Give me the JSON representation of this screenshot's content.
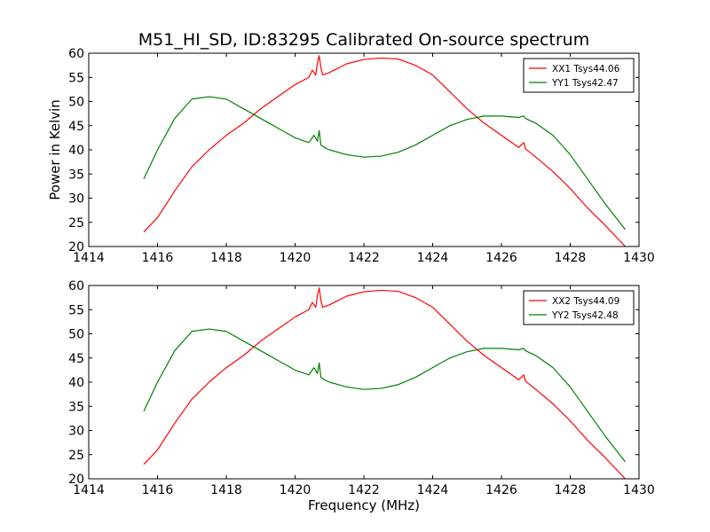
{
  "figure": {
    "title": "M51_HI_SD, ID:83295 Calibrated On-source spectrum",
    "ylabel": "Power in Kelvin",
    "xlabel": "Frequency (MHz)"
  },
  "chart_data": [
    {
      "type": "line",
      "xlim": [
        1414,
        1430
      ],
      "ylim": [
        20,
        60
      ],
      "xticks": [
        1414,
        1416,
        1418,
        1420,
        1422,
        1424,
        1426,
        1428,
        1430
      ],
      "yticks": [
        20,
        25,
        30,
        35,
        40,
        45,
        50,
        55,
        60
      ],
      "legend": "top-right",
      "grid": false,
      "series": [
        {
          "name": "XX1 Tsys44.06",
          "color": "#ff0000",
          "x": [
            1415.6,
            1416.0,
            1416.5,
            1417.0,
            1417.5,
            1418.0,
            1418.5,
            1419.0,
            1419.5,
            1420.0,
            1420.4,
            1420.5,
            1420.6,
            1420.65,
            1420.7,
            1420.75,
            1420.8,
            1421.0,
            1421.5,
            1422.0,
            1422.5,
            1423.0,
            1423.5,
            1424.0,
            1424.5,
            1425.0,
            1425.5,
            1426.0,
            1426.5,
            1426.65,
            1426.7,
            1427.0,
            1427.5,
            1428.0,
            1428.5,
            1429.0,
            1429.6
          ],
          "y": [
            23.0,
            26.0,
            31.5,
            36.5,
            40.0,
            43.0,
            45.5,
            48.5,
            51.0,
            53.5,
            55.0,
            56.5,
            55.5,
            58.0,
            59.5,
            57.0,
            55.5,
            56.0,
            57.8,
            58.7,
            59.0,
            58.8,
            57.5,
            55.5,
            52.0,
            48.5,
            45.5,
            43.0,
            40.5,
            41.5,
            40.2,
            38.5,
            35.5,
            32.0,
            28.0,
            24.5,
            20.0
          ]
        },
        {
          "name": "YY1 Tsys42.47",
          "color": "#008000",
          "x": [
            1415.6,
            1416.0,
            1416.5,
            1417.0,
            1417.5,
            1418.0,
            1418.5,
            1419.0,
            1419.5,
            1420.0,
            1420.4,
            1420.55,
            1420.65,
            1420.7,
            1420.75,
            1420.85,
            1421.0,
            1421.5,
            1422.0,
            1422.5,
            1423.0,
            1423.5,
            1424.0,
            1424.5,
            1425.0,
            1425.5,
            1426.0,
            1426.5,
            1426.65,
            1426.7,
            1427.0,
            1427.5,
            1428.0,
            1428.5,
            1429.0,
            1429.6
          ],
          "y": [
            34.0,
            40.0,
            46.5,
            50.5,
            51.0,
            50.5,
            48.5,
            46.5,
            44.5,
            42.5,
            41.5,
            43.0,
            41.8,
            44.0,
            41.0,
            40.5,
            40.0,
            39.0,
            38.5,
            38.7,
            39.5,
            41.0,
            43.0,
            45.0,
            46.3,
            47.0,
            47.0,
            46.7,
            47.0,
            46.5,
            45.5,
            43.0,
            39.0,
            34.0,
            29.0,
            23.5
          ]
        }
      ]
    },
    {
      "type": "line",
      "xlim": [
        1414,
        1430
      ],
      "ylim": [
        20,
        60
      ],
      "xticks": [
        1414,
        1416,
        1418,
        1420,
        1422,
        1424,
        1426,
        1428,
        1430
      ],
      "yticks": [
        20,
        25,
        30,
        35,
        40,
        45,
        50,
        55,
        60
      ],
      "legend": "top-right",
      "grid": false,
      "series": [
        {
          "name": "XX2 Tsys44.09",
          "color": "#ff0000",
          "x": [
            1415.6,
            1416.0,
            1416.5,
            1417.0,
            1417.5,
            1418.0,
            1418.5,
            1419.0,
            1419.5,
            1420.0,
            1420.4,
            1420.5,
            1420.6,
            1420.65,
            1420.7,
            1420.75,
            1420.8,
            1421.0,
            1421.5,
            1422.0,
            1422.5,
            1423.0,
            1423.5,
            1424.0,
            1424.5,
            1425.0,
            1425.5,
            1426.0,
            1426.5,
            1426.65,
            1426.7,
            1427.0,
            1427.5,
            1428.0,
            1428.5,
            1429.0,
            1429.6
          ],
          "y": [
            23.0,
            26.0,
            31.5,
            36.5,
            40.0,
            43.0,
            45.5,
            48.5,
            51.0,
            53.5,
            55.0,
            56.5,
            55.5,
            58.0,
            59.5,
            57.0,
            55.5,
            56.0,
            57.8,
            58.7,
            59.0,
            58.8,
            57.5,
            55.5,
            52.0,
            48.5,
            45.5,
            43.0,
            40.5,
            41.5,
            40.2,
            38.5,
            35.5,
            32.0,
            28.0,
            24.5,
            20.0
          ]
        },
        {
          "name": "YY2 Tsys42.48",
          "color": "#008000",
          "x": [
            1415.6,
            1416.0,
            1416.5,
            1417.0,
            1417.5,
            1418.0,
            1418.5,
            1419.0,
            1419.5,
            1420.0,
            1420.4,
            1420.55,
            1420.65,
            1420.7,
            1420.75,
            1420.85,
            1421.0,
            1421.5,
            1422.0,
            1422.5,
            1423.0,
            1423.5,
            1424.0,
            1424.5,
            1425.0,
            1425.5,
            1426.0,
            1426.5,
            1426.65,
            1426.7,
            1427.0,
            1427.5,
            1428.0,
            1428.5,
            1429.0,
            1429.6
          ],
          "y": [
            34.0,
            40.0,
            46.5,
            50.5,
            51.0,
            50.5,
            48.5,
            46.5,
            44.5,
            42.5,
            41.5,
            43.0,
            41.8,
            44.0,
            41.0,
            40.5,
            40.0,
            39.0,
            38.5,
            38.7,
            39.5,
            41.0,
            43.0,
            45.0,
            46.3,
            47.0,
            47.0,
            46.7,
            47.0,
            46.5,
            45.5,
            43.0,
            39.0,
            34.0,
            29.0,
            23.5
          ]
        }
      ]
    }
  ]
}
